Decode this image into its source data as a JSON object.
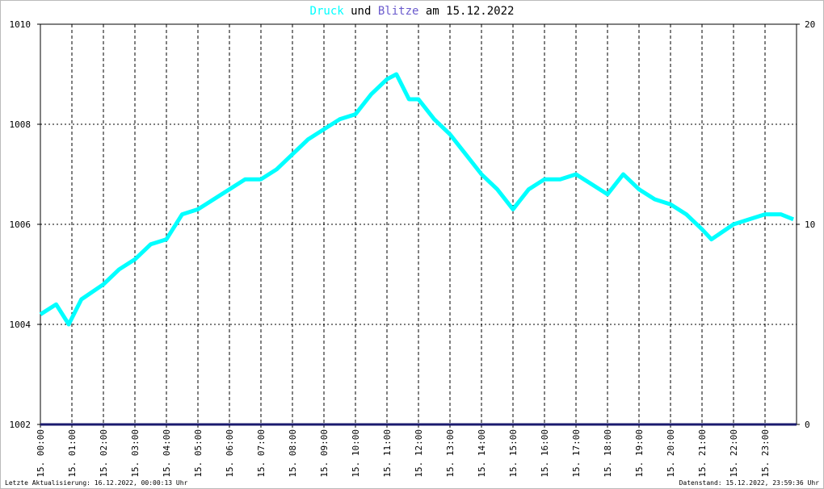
{
  "chart_data": {
    "type": "line",
    "title_connector": "und",
    "title_date": "am 15.12.2022",
    "footer_left": "Letzte Aktualisierung: 16.12.2022, 00:00:13 Uhr",
    "footer_right": "Datenstand: 15.12.2022, 23:59:36 Uhr",
    "xlim": [
      0,
      24
    ],
    "xticks": [
      {
        "value": 0,
        "label": "15. 00:00"
      },
      {
        "value": 1,
        "label": "15. 01:00"
      },
      {
        "value": 2,
        "label": "15. 02:00"
      },
      {
        "value": 3,
        "label": "15. 03:00"
      },
      {
        "value": 4,
        "label": "15. 04:00"
      },
      {
        "value": 5,
        "label": "15. 05:00"
      },
      {
        "value": 6,
        "label": "15. 06:00"
      },
      {
        "value": 7,
        "label": "15. 07:00"
      },
      {
        "value": 8,
        "label": "15. 08:00"
      },
      {
        "value": 9,
        "label": "15. 09:00"
      },
      {
        "value": 10,
        "label": "15. 10:00"
      },
      {
        "value": 11,
        "label": "15. 11:00"
      },
      {
        "value": 12,
        "label": "15. 12:00"
      },
      {
        "value": 13,
        "label": "15. 13:00"
      },
      {
        "value": 14,
        "label": "15. 14:00"
      },
      {
        "value": 15,
        "label": "15. 15:00"
      },
      {
        "value": 16,
        "label": "15. 16:00"
      },
      {
        "value": 17,
        "label": "15. 17:00"
      },
      {
        "value": 18,
        "label": "15. 18:00"
      },
      {
        "value": 19,
        "label": "15. 19:00"
      },
      {
        "value": 20,
        "label": "15. 20:00"
      },
      {
        "value": 21,
        "label": "15. 21:00"
      },
      {
        "value": 22,
        "label": "15. 22:00"
      },
      {
        "value": 23,
        "label": "15. 23:00"
      }
    ],
    "ylim": [
      1002,
      1010
    ],
    "yticks": [
      1002,
      1004,
      1006,
      1008,
      1010
    ],
    "y2lim": [
      0,
      20
    ],
    "y2ticks": [
      0,
      10,
      20
    ],
    "grid": true,
    "series": [
      {
        "name": "Druck",
        "color": "#00ffff",
        "x": [
          0,
          0.5,
          0.9,
          1.3,
          2,
          2.5,
          3,
          3.5,
          4,
          4.5,
          5,
          5.5,
          6,
          6.5,
          7,
          7.5,
          8,
          8.5,
          9,
          9.5,
          10,
          10.5,
          11,
          11.3,
          11.7,
          12,
          12.5,
          13,
          13.5,
          14,
          14.5,
          15,
          15.5,
          16,
          16.5,
          17,
          17.5,
          18,
          18.5,
          19,
          19.5,
          20,
          20.5,
          21,
          21.3,
          22,
          22.5,
          23,
          23.5,
          23.9
        ],
        "values": [
          1004.2,
          1004.4,
          1004.0,
          1004.5,
          1004.8,
          1005.1,
          1005.3,
          1005.6,
          1005.7,
          1006.2,
          1006.3,
          1006.5,
          1006.7,
          1006.9,
          1006.9,
          1007.1,
          1007.4,
          1007.7,
          1007.9,
          1008.1,
          1008.2,
          1008.6,
          1008.9,
          1009.0,
          1008.5,
          1008.5,
          1008.1,
          1007.8,
          1007.4,
          1007.0,
          1006.7,
          1006.3,
          1006.7,
          1006.9,
          1006.9,
          1007.0,
          1006.8,
          1006.6,
          1007.0,
          1006.7,
          1006.5,
          1006.4,
          1006.2,
          1005.9,
          1005.7,
          1006.0,
          1006.1,
          1006.2,
          1006.2,
          1006.1
        ]
      },
      {
        "name": "Blitze",
        "color": "#1a1a6e",
        "axis": "y2",
        "x": [
          0,
          24
        ],
        "values": [
          0,
          0
        ]
      }
    ]
  }
}
